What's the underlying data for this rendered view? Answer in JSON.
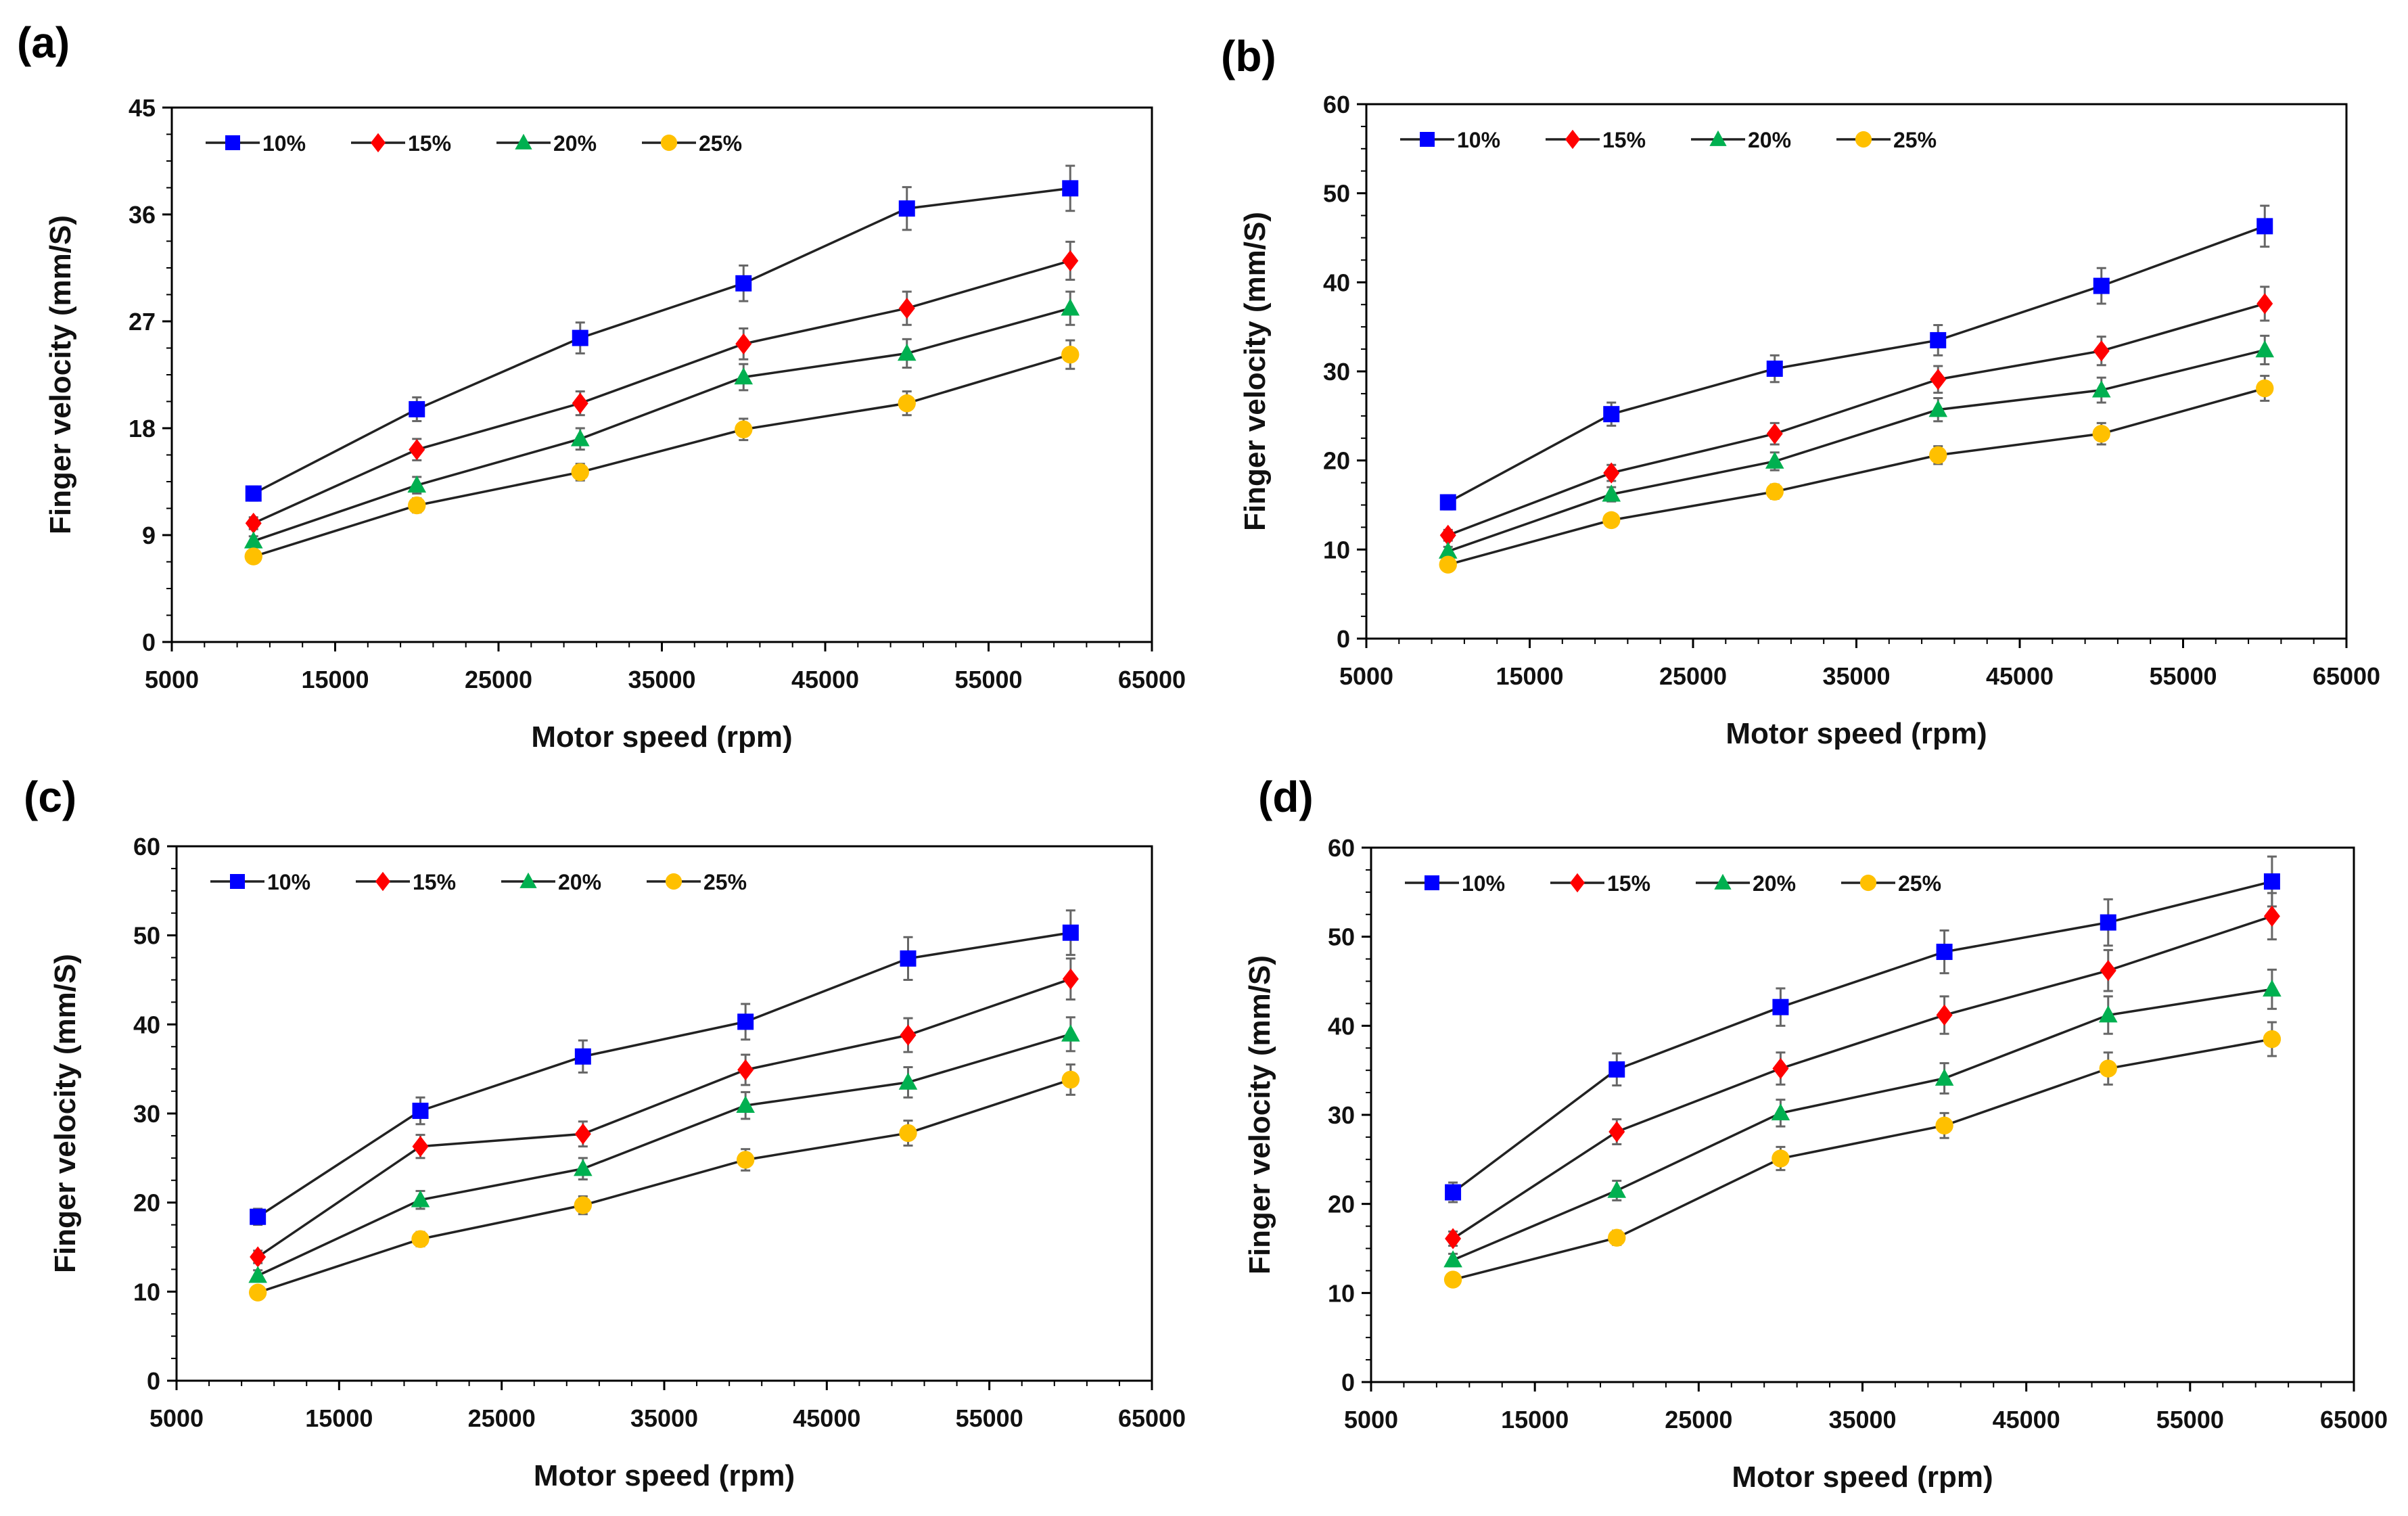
{
  "chart_data": [
    {
      "panel_label": "(a)",
      "type": "line",
      "xlabel": "Motor speed (rpm)",
      "ylabel": "Finger velocity (mm/S)",
      "xlim": [
        5000,
        65000
      ],
      "ylim": [
        0,
        45
      ],
      "xticks": [
        5000,
        15000,
        25000,
        35000,
        45000,
        55000,
        65000
      ],
      "yticks": [
        0,
        9,
        18,
        27,
        36,
        45
      ],
      "x": [
        10000,
        20000,
        30000,
        40000,
        50000,
        60000
      ],
      "legend_position": "top-left",
      "series": [
        {
          "name": "10%",
          "color": "#0000FF",
          "marker": "square",
          "values": [
            12.5,
            19.6,
            25.6,
            30.2,
            36.5,
            38.2
          ],
          "errors": [
            0.6,
            1.0,
            1.3,
            1.5,
            1.8,
            1.9
          ]
        },
        {
          "name": "15%",
          "color": "#FF0000",
          "marker": "diamond",
          "values": [
            10.0,
            16.2,
            20.1,
            25.1,
            28.1,
            32.1
          ],
          "errors": [
            0.5,
            0.9,
            1.0,
            1.3,
            1.4,
            1.6
          ]
        },
        {
          "name": "20%",
          "color": "#00B050",
          "marker": "triangle",
          "values": [
            8.5,
            13.2,
            17.1,
            22.3,
            24.3,
            28.1
          ],
          "errors": [
            0.4,
            0.7,
            0.9,
            1.1,
            1.2,
            1.4
          ]
        },
        {
          "name": "25%",
          "color": "#FFC000",
          "marker": "circle",
          "values": [
            7.2,
            11.5,
            14.3,
            17.9,
            20.1,
            24.2
          ],
          "errors": [
            0.4,
            0.6,
            0.7,
            0.9,
            1.0,
            1.2
          ]
        }
      ]
    },
    {
      "panel_label": "(b)",
      "type": "line",
      "xlabel": "Motor speed (rpm)",
      "ylabel": "Finger velocity (mm/S)",
      "xlim": [
        5000,
        65000
      ],
      "ylim": [
        0,
        60
      ],
      "xticks": [
        5000,
        15000,
        25000,
        35000,
        45000,
        55000,
        65000
      ],
      "yticks": [
        0,
        10,
        20,
        30,
        40,
        50,
        60
      ],
      "x": [
        10000,
        20000,
        30000,
        40000,
        50000,
        60000
      ],
      "legend_position": "top-left",
      "series": [
        {
          "name": "10%",
          "color": "#0000FF",
          "marker": "square",
          "values": [
            15.3,
            25.2,
            30.3,
            33.5,
            39.6,
            46.3
          ],
          "errors": [
            0.8,
            1.3,
            1.5,
            1.7,
            2.0,
            2.3
          ]
        },
        {
          "name": "15%",
          "color": "#FF0000",
          "marker": "diamond",
          "values": [
            11.6,
            18.6,
            23.0,
            29.1,
            32.3,
            37.6
          ],
          "errors": [
            0.6,
            0.9,
            1.2,
            1.5,
            1.6,
            1.9
          ]
        },
        {
          "name": "20%",
          "color": "#00B050",
          "marker": "triangle",
          "values": [
            9.8,
            16.2,
            19.9,
            25.7,
            27.9,
            32.4
          ],
          "errors": [
            0.5,
            0.8,
            1.0,
            1.3,
            1.4,
            1.6
          ]
        },
        {
          "name": "25%",
          "color": "#FFC000",
          "marker": "circle",
          "values": [
            8.3,
            13.3,
            16.5,
            20.6,
            23.0,
            28.1
          ],
          "errors": [
            0.4,
            0.7,
            0.8,
            1.0,
            1.2,
            1.4
          ]
        }
      ]
    },
    {
      "panel_label": "(c)",
      "type": "line",
      "xlabel": "Motor speed (rpm)",
      "ylabel": "Finger velocity (mm/S)",
      "xlim": [
        5000,
        65000
      ],
      "ylim": [
        0,
        60
      ],
      "xticks": [
        5000,
        15000,
        25000,
        35000,
        45000,
        55000,
        65000
      ],
      "yticks": [
        0,
        10,
        20,
        30,
        40,
        50,
        60
      ],
      "x": [
        10000,
        20000,
        30000,
        40000,
        50000,
        60000
      ],
      "legend_position": "top-left",
      "series": [
        {
          "name": "10%",
          "color": "#0000FF",
          "marker": "square",
          "values": [
            18.4,
            30.3,
            36.4,
            40.3,
            47.4,
            50.3
          ],
          "errors": [
            0.9,
            1.5,
            1.8,
            2.0,
            2.4,
            2.5
          ]
        },
        {
          "name": "15%",
          "color": "#FF0000",
          "marker": "diamond",
          "values": [
            13.9,
            26.3,
            27.7,
            34.9,
            38.8,
            45.1
          ],
          "errors": [
            0.7,
            1.3,
            1.4,
            1.7,
            1.9,
            2.3
          ]
        },
        {
          "name": "20%",
          "color": "#00B050",
          "marker": "triangle",
          "values": [
            11.8,
            20.3,
            23.8,
            30.9,
            33.5,
            38.9
          ],
          "errors": [
            0.6,
            1.0,
            1.2,
            1.5,
            1.7,
            1.9
          ]
        },
        {
          "name": "25%",
          "color": "#FFC000",
          "marker": "circle",
          "values": [
            9.9,
            15.9,
            19.7,
            24.8,
            27.8,
            33.8
          ],
          "errors": [
            0.5,
            0.8,
            1.0,
            1.2,
            1.4,
            1.7
          ]
        }
      ]
    },
    {
      "panel_label": "(d)",
      "type": "line",
      "xlabel": "Motor speed (rpm)",
      "ylabel": "Finger velocity (mm/S)",
      "xlim": [
        5000,
        65000
      ],
      "ylim": [
        0,
        60
      ],
      "xticks": [
        5000,
        15000,
        25000,
        35000,
        45000,
        55000,
        65000
      ],
      "yticks": [
        0,
        10,
        20,
        30,
        40,
        50,
        60
      ],
      "x": [
        10000,
        20000,
        30000,
        40000,
        50000,
        60000
      ],
      "legend_position": "top-left",
      "series": [
        {
          "name": "10%",
          "color": "#0000FF",
          "marker": "square",
          "values": [
            21.3,
            35.1,
            42.1,
            48.3,
            51.6,
            56.2
          ],
          "errors": [
            1.1,
            1.8,
            2.1,
            2.4,
            2.6,
            2.8
          ]
        },
        {
          "name": "15%",
          "color": "#FF0000",
          "marker": "diamond",
          "values": [
            16.1,
            28.1,
            35.2,
            41.2,
            46.2,
            52.3
          ],
          "errors": [
            0.8,
            1.4,
            1.8,
            2.1,
            2.3,
            2.6
          ]
        },
        {
          "name": "20%",
          "color": "#00B050",
          "marker": "triangle",
          "values": [
            13.7,
            21.5,
            30.2,
            34.1,
            41.2,
            44.1
          ],
          "errors": [
            0.7,
            1.1,
            1.5,
            1.7,
            2.1,
            2.2
          ]
        },
        {
          "name": "25%",
          "color": "#FFC000",
          "marker": "circle",
          "values": [
            11.5,
            16.2,
            25.1,
            28.8,
            35.2,
            38.5
          ],
          "errors": [
            0.6,
            0.8,
            1.3,
            1.4,
            1.8,
            1.9
          ]
        }
      ]
    }
  ]
}
